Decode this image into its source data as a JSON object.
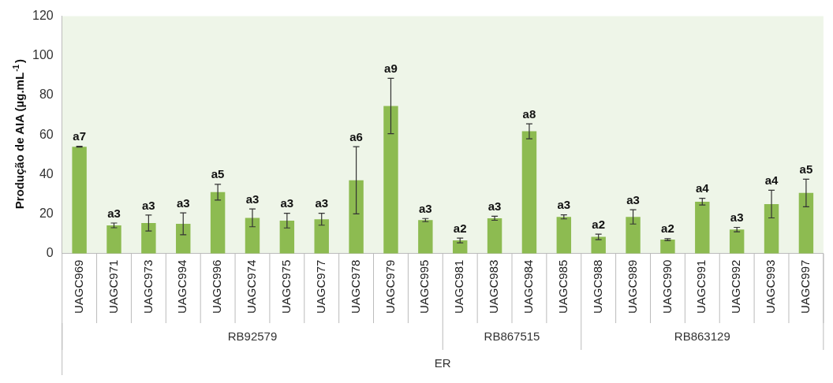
{
  "chart_data": {
    "type": "bar",
    "ylabel": "Produção de AIA (µg.mL$^{-1}$)",
    "categories": [
      "UAGC969",
      "UAGC971",
      "UAGC973",
      "UAGC994",
      "UAGC996",
      "UAGC974",
      "UAGC975",
      "UAGC977",
      "UAGC978",
      "UAGC979",
      "UAGC995",
      "UAGC981",
      "UAGC983",
      "UAGC984",
      "UAGC985",
      "UAGC988",
      "UAGC989",
      "UAGC990",
      "UAGC991",
      "UAGC992",
      "UAGC993",
      "UAGC997"
    ],
    "values": [
      54,
      14.2,
      15.4,
      15,
      31,
      18,
      16.6,
      17.3,
      37,
      74.6,
      16.9,
      6.6,
      17.8,
      61.8,
      18.5,
      8.4,
      18.5,
      7,
      26.2,
      12.1,
      25,
      30.6
    ],
    "errors": [
      0.2,
      1.2,
      4,
      5.5,
      4,
      4.5,
      3.7,
      3,
      17,
      14,
      0.8,
      1.2,
      1,
      3.8,
      1,
      1.4,
      3.6,
      0.5,
      1.7,
      1.1,
      7,
      7
    ],
    "value_labels": [
      "a7",
      "a3",
      "a3",
      "a3",
      "a5",
      "a3",
      "a3",
      "a3",
      "a6",
      "a9",
      "a3",
      "a2",
      "a3",
      "a8",
      "a3",
      "a2",
      "a3",
      "a2",
      "a4",
      "a3",
      "a4",
      "a5"
    ],
    "color": "#8dbb51",
    "ylim": [
      0,
      120
    ],
    "yticks": [
      0,
      20,
      40,
      60,
      80,
      100,
      120
    ],
    "grid": false,
    "annotations": [
      "RB92579",
      "RB867515",
      "RB863129",
      "ER"
    ]
  }
}
